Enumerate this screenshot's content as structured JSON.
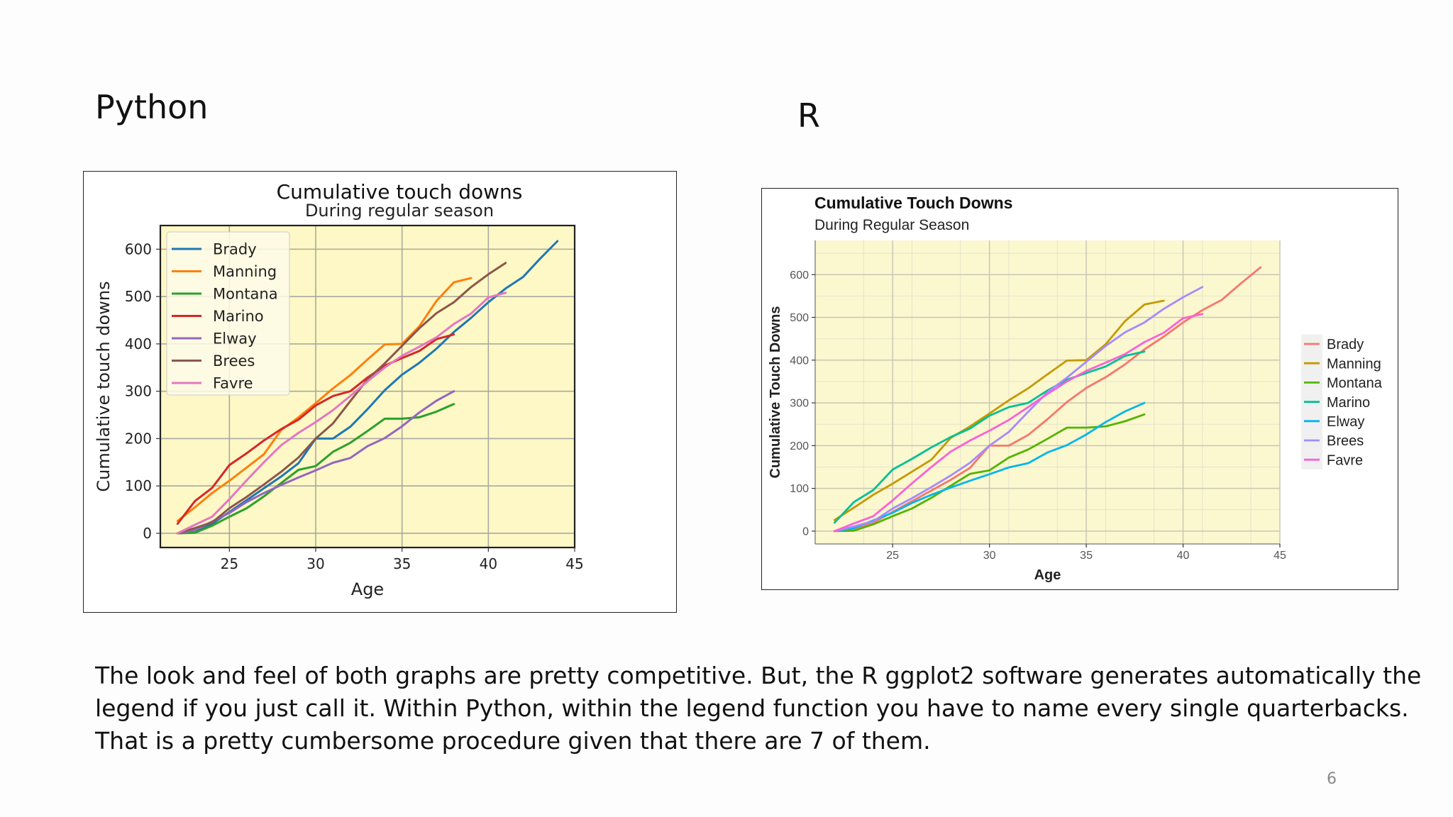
{
  "slide": {
    "heading_left": "Python",
    "heading_right": "R",
    "caption_lines": [
      "The look and feel of both graphs are pretty competitive.  But, the R ggplot2 software generates automatically the",
      "legend if you just call it.  Within Python, within the legend function you have to name every single quarterbacks.",
      "That is a pretty cumbersome procedure given that there are 7 of them."
    ],
    "page_number": "6"
  },
  "chart_data": [
    {
      "type": "line",
      "title": "Cumulative touch downs",
      "subtitle": "During regular season",
      "xlabel": "Age",
      "ylabel": "Cumulative touch downs",
      "xlim": [
        21,
        45
      ],
      "ylim": [
        -30,
        650
      ],
      "xticks": [
        25,
        30,
        35,
        40,
        45
      ],
      "yticks": [
        0,
        100,
        200,
        300,
        400,
        500,
        600
      ],
      "grid": true,
      "legend_position": "top-left",
      "background": "#fdf8c5",
      "series": [
        {
          "name": "Brady",
          "color": "#1f77b4",
          "x": [
            22,
            23,
            24,
            25,
            26,
            27,
            28,
            29,
            30,
            31,
            32,
            33,
            34,
            35,
            36,
            37,
            38,
            39,
            40,
            41,
            42,
            43,
            44
          ],
          "y": [
            0,
            2,
            20,
            45,
            70,
            95,
            120,
            148,
            200,
            200,
            225,
            262,
            302,
            335,
            360,
            390,
            425,
            455,
            488,
            517,
            541,
            580,
            617
          ]
        },
        {
          "name": "Manning",
          "color": "#ff7f0e",
          "x": [
            22,
            23,
            24,
            25,
            26,
            27,
            28,
            29,
            30,
            31,
            32,
            33,
            34,
            35,
            36,
            37,
            38,
            39
          ],
          "y": [
            26,
            55,
            85,
            111,
            139,
            167,
            218,
            245,
            275,
            306,
            334,
            367,
            399,
            400,
            437,
            491,
            530,
            539
          ]
        },
        {
          "name": "Montana",
          "color": "#2ca02c",
          "x": [
            22,
            23,
            24,
            25,
            26,
            27,
            28,
            29,
            30,
            31,
            32,
            33,
            34,
            35,
            36,
            37,
            38
          ],
          "y": [
            0,
            1,
            16,
            35,
            53,
            78,
            106,
            134,
            142,
            172,
            191,
            216,
            242,
            242,
            245,
            257,
            273
          ]
        },
        {
          "name": "Marino",
          "color": "#d62728",
          "x": [
            22,
            23,
            24,
            25,
            26,
            27,
            28,
            29,
            30,
            31,
            32,
            33,
            34,
            35,
            36,
            37,
            38
          ],
          "y": [
            20,
            68,
            96,
            144,
            169,
            196,
            220,
            240,
            270,
            290,
            300,
            329,
            354,
            370,
            385,
            410,
            420
          ]
        },
        {
          "name": "Elway",
          "color": "#9467bd",
          "x": [
            22,
            23,
            24,
            25,
            26,
            27,
            28,
            29,
            30,
            31,
            32,
            33,
            34,
            35,
            36,
            37,
            38
          ],
          "y": [
            0,
            7,
            25,
            43,
            66,
            85,
            102,
            118,
            133,
            149,
            159,
            184,
            201,
            226,
            255,
            280,
            300
          ]
        },
        {
          "name": "Brees",
          "color": "#8c564b",
          "x": [
            22,
            23,
            24,
            25,
            26,
            27,
            28,
            29,
            30,
            31,
            32,
            33,
            34,
            35,
            36,
            37,
            38,
            39,
            40,
            41
          ],
          "y": [
            0,
            11,
            23,
            53,
            77,
            103,
            130,
            160,
            200,
            232,
            279,
            325,
            359,
            396,
            433,
            465,
            488,
            520,
            547,
            571
          ]
        },
        {
          "name": "Favre",
          "color": "#e377c2",
          "x": [
            22,
            23,
            24,
            25,
            26,
            27,
            28,
            29,
            30,
            31,
            32,
            33,
            34,
            35,
            36,
            37,
            38,
            39,
            40,
            41
          ],
          "y": [
            0,
            18,
            35,
            72,
            112,
            150,
            186,
            212,
            235,
            260,
            290,
            321,
            350,
            375,
            394,
            414,
            442,
            464,
            498,
            508
          ]
        }
      ]
    },
    {
      "type": "line",
      "title": "Cumulative Touch Downs",
      "subtitle": "During Regular Season",
      "xlabel": "Age",
      "ylabel": "Cumulative Touch Downs",
      "xlim": [
        21,
        45
      ],
      "ylim": [
        -30,
        680
      ],
      "xticks": [
        25,
        30,
        35,
        40,
        45
      ],
      "yticks": [
        0,
        100,
        200,
        300,
        400,
        500,
        600
      ],
      "grid": true,
      "legend_position": "right",
      "background": "#fbf7cf",
      "series": [
        {
          "name": "Brady",
          "color": "#f8766d",
          "x": [
            22,
            23,
            24,
            25,
            26,
            27,
            28,
            29,
            30,
            31,
            32,
            33,
            34,
            35,
            36,
            37,
            38,
            39,
            40,
            41,
            42,
            43,
            44
          ],
          "y": [
            0,
            2,
            20,
            45,
            70,
            95,
            120,
            148,
            200,
            200,
            225,
            262,
            302,
            335,
            360,
            390,
            425,
            455,
            488,
            517,
            541,
            580,
            617
          ]
        },
        {
          "name": "Manning",
          "color": "#c49a00",
          "x": [
            22,
            23,
            24,
            25,
            26,
            27,
            28,
            29,
            30,
            31,
            32,
            33,
            34,
            35,
            36,
            37,
            38,
            39
          ],
          "y": [
            26,
            55,
            85,
            111,
            139,
            167,
            218,
            245,
            275,
            306,
            334,
            367,
            399,
            400,
            437,
            491,
            530,
            539
          ]
        },
        {
          "name": "Montana",
          "color": "#53b400",
          "x": [
            22,
            23,
            24,
            25,
            26,
            27,
            28,
            29,
            30,
            31,
            32,
            33,
            34,
            35,
            36,
            37,
            38
          ],
          "y": [
            0,
            1,
            16,
            35,
            53,
            78,
            106,
            134,
            142,
            172,
            191,
            216,
            242,
            242,
            245,
            257,
            273
          ]
        },
        {
          "name": "Marino",
          "color": "#00c094",
          "x": [
            22,
            23,
            24,
            25,
            26,
            27,
            28,
            29,
            30,
            31,
            32,
            33,
            34,
            35,
            36,
            37,
            38
          ],
          "y": [
            20,
            68,
            96,
            144,
            169,
            196,
            220,
            240,
            270,
            290,
            300,
            329,
            354,
            370,
            385,
            410,
            420
          ]
        },
        {
          "name": "Elway",
          "color": "#00b6eb",
          "x": [
            22,
            23,
            24,
            25,
            26,
            27,
            28,
            29,
            30,
            31,
            32,
            33,
            34,
            35,
            36,
            37,
            38
          ],
          "y": [
            0,
            7,
            25,
            43,
            66,
            85,
            102,
            118,
            133,
            149,
            159,
            184,
            201,
            226,
            255,
            280,
            300
          ]
        },
        {
          "name": "Brees",
          "color": "#a58aff",
          "x": [
            22,
            23,
            24,
            25,
            26,
            27,
            28,
            29,
            30,
            31,
            32,
            33,
            34,
            35,
            36,
            37,
            38,
            39,
            40,
            41
          ],
          "y": [
            0,
            11,
            23,
            53,
            77,
            103,
            130,
            160,
            200,
            232,
            279,
            325,
            359,
            396,
            433,
            465,
            488,
            520,
            547,
            571
          ]
        },
        {
          "name": "Favre",
          "color": "#fb61d7",
          "x": [
            22,
            23,
            24,
            25,
            26,
            27,
            28,
            29,
            30,
            31,
            32,
            33,
            34,
            35,
            36,
            37,
            38,
            39,
            40,
            41
          ],
          "y": [
            0,
            18,
            35,
            72,
            112,
            150,
            186,
            212,
            235,
            260,
            290,
            321,
            350,
            375,
            394,
            414,
            442,
            464,
            498,
            508
          ]
        }
      ]
    }
  ]
}
